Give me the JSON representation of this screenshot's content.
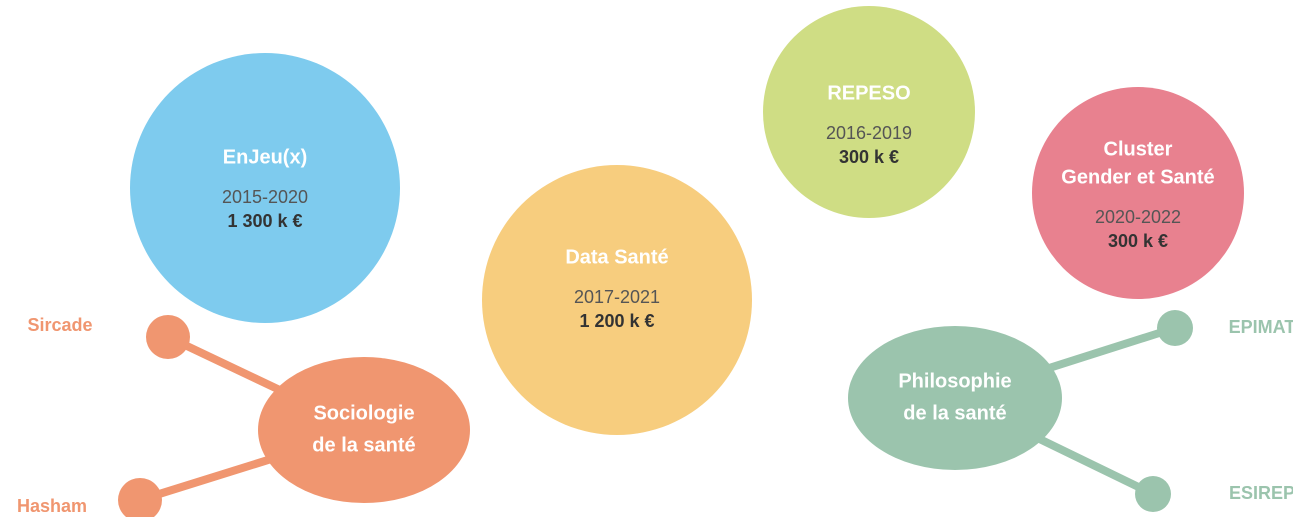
{
  "projects": [
    {
      "title_lines": [
        "EnJeu(x)"
      ],
      "years": "2015-2020",
      "amount": "1 300 k €"
    },
    {
      "title_lines": [
        "Data Santé"
      ],
      "years": "2017-2021",
      "amount": "1 200 k €"
    },
    {
      "title_lines": [
        "REPESO"
      ],
      "years": "2016-2019",
      "amount": "300 k €"
    },
    {
      "title_lines": [
        "Cluster",
        "Gender et Santé"
      ],
      "years": "2020-2022",
      "amount": "300 k €"
    }
  ],
  "clusters": [
    {
      "label_lines": [
        "Sociologie",
        "de la santé"
      ],
      "nodes": [
        "Sircade",
        "Hasham"
      ]
    },
    {
      "label_lines": [
        "Philosophie",
        "de la santé"
      ],
      "nodes": [
        "EPIMAT",
        "ESIREP"
      ]
    }
  ]
}
